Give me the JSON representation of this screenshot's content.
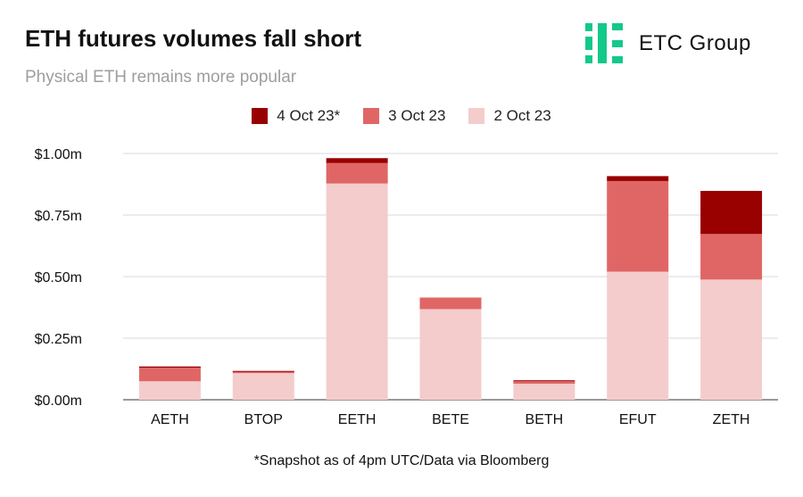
{
  "title": "ETH futures volumes fall short",
  "subtitle": "Physical ETH remains more popular",
  "logo": {
    "text": "ETC Group",
    "icon": "etc-group-logo-icon",
    "color": "#13c98a"
  },
  "footnote": "*Snapshot as of 4pm UTC/Data via Bloomberg",
  "chart_data": {
    "type": "bar",
    "stacked": true,
    "categories": [
      "AETH",
      "BTOP",
      "EETH",
      "BETE",
      "BETH",
      "EFUT",
      "ZETH"
    ],
    "series": [
      {
        "name": "2 Oct 23",
        "color": "#f4cccc",
        "values": [
          0.075,
          0.108,
          0.878,
          0.368,
          0.065,
          0.52,
          0.488
        ]
      },
      {
        "name": "3 Oct 23",
        "color": "#e06666",
        "values": [
          0.055,
          0.005,
          0.083,
          0.047,
          0.01,
          0.368,
          0.185
        ]
      },
      {
        "name": "4 Oct 23*",
        "color": "#990000",
        "values": [
          0.005,
          0.004,
          0.02,
          0.0,
          0.004,
          0.02,
          0.175
        ]
      }
    ],
    "legend_order": [
      "4 Oct 23*",
      "3 Oct 23",
      "2 Oct 23"
    ],
    "ylim": [
      0,
      1.0
    ],
    "yticks": [
      0,
      0.25,
      0.5,
      0.75,
      1.0
    ],
    "ytick_labels": [
      "$0.00m",
      "$0.25m",
      "$0.50m",
      "$0.75m",
      "$1.00m"
    ],
    "grid": true,
    "legend_position": "top-center",
    "xlabel": "",
    "ylabel": ""
  }
}
